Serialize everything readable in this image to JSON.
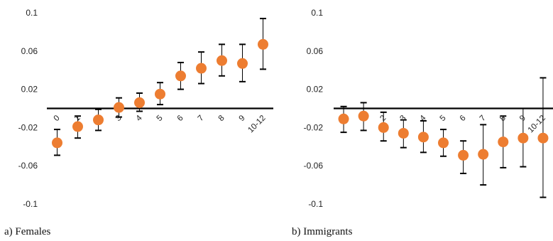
{
  "chart_data": [
    {
      "type": "scatter",
      "caption": "a) Females",
      "ylim": [
        -0.1,
        0.1
      ],
      "yticks": [
        0.1,
        0.06,
        0.02,
        -0.02,
        -0.06,
        -0.1
      ],
      "ytick_labels": [
        "0.1",
        "0.06",
        "0.02",
        "-0.02",
        "-0.06",
        "-0.1"
      ],
      "categories": [
        "0",
        "1",
        "2",
        "3",
        "4",
        "5",
        "6",
        "7",
        "8",
        "9",
        "10-12"
      ],
      "values": [
        -0.036,
        -0.019,
        -0.012,
        0.001,
        0.006,
        0.015,
        0.034,
        0.042,
        0.05,
        0.047,
        0.067
      ],
      "lower": [
        -0.049,
        -0.031,
        -0.023,
        -0.009,
        -0.003,
        0.004,
        0.02,
        0.026,
        0.034,
        0.028,
        0.041
      ],
      "upper": [
        -0.022,
        -0.008,
        -0.001,
        0.011,
        0.016,
        0.027,
        0.048,
        0.059,
        0.067,
        0.067,
        0.094
      ],
      "marker_color": "#ED7D31",
      "errorbar_color": "#000000",
      "reference_line": 0
    },
    {
      "type": "scatter",
      "caption": "b) Immigrants",
      "ylim": [
        -0.1,
        0.1
      ],
      "yticks": [
        0.1,
        0.06,
        0.02,
        -0.02,
        -0.06,
        -0.1
      ],
      "ytick_labels": [
        "0.1",
        "0.06",
        "0.02",
        "-0.02",
        "-0.06",
        "-0.1"
      ],
      "categories": [
        "0",
        "1",
        "2",
        "3",
        "4",
        "5",
        "6",
        "7",
        "8",
        "9",
        "10-12"
      ],
      "values": [
        -0.011,
        -0.008,
        -0.02,
        -0.026,
        -0.03,
        -0.036,
        -0.049,
        -0.048,
        -0.035,
        -0.031,
        -0.031
      ],
      "lower": [
        -0.025,
        -0.023,
        -0.034,
        -0.041,
        -0.046,
        -0.05,
        -0.068,
        -0.08,
        -0.062,
        -0.061,
        -0.093
      ],
      "upper": [
        0.002,
        0.006,
        -0.004,
        -0.012,
        -0.013,
        -0.022,
        -0.034,
        -0.017,
        -0.008,
        0.0,
        0.032
      ],
      "marker_color": "#ED7D31",
      "errorbar_color": "#000000",
      "reference_line": 0
    }
  ]
}
